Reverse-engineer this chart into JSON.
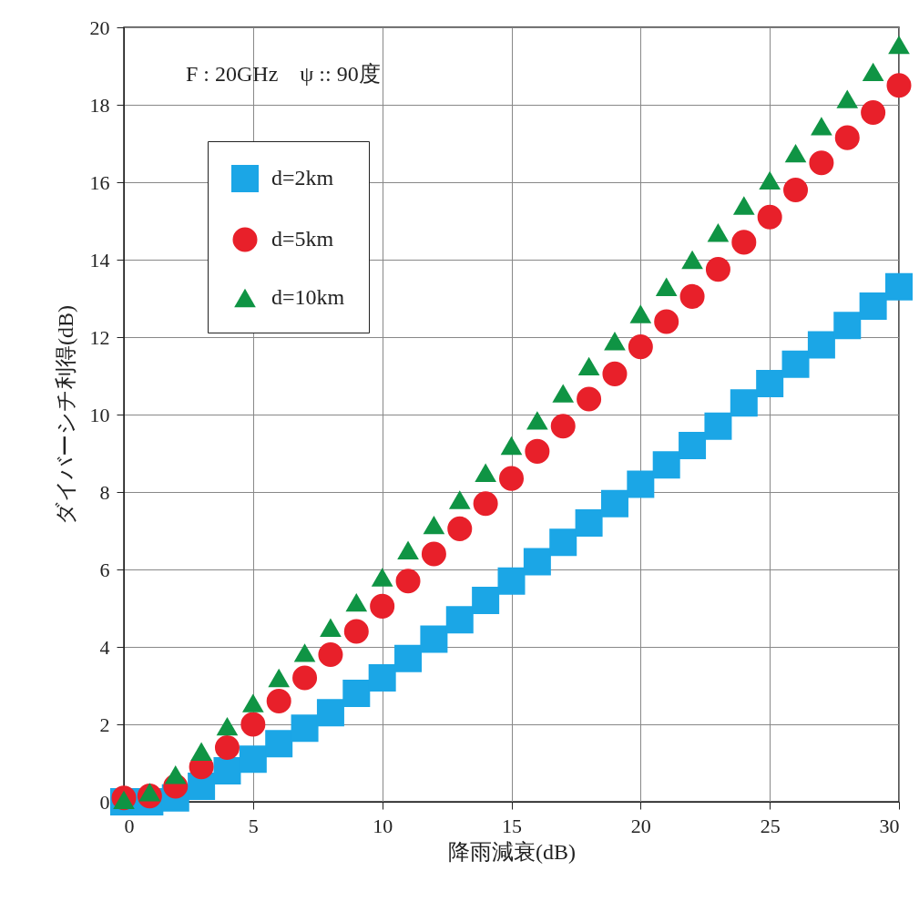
{
  "chart_data": {
    "type": "scatter",
    "xlabel": "降雨減衰(dB)",
    "ylabel": "ダイバーシチ利得(dB)",
    "annotations": [
      "F : 20GHz　ψ :: 90度"
    ],
    "x": [
      0,
      1,
      2,
      3,
      4,
      5,
      6,
      7,
      8,
      9,
      10,
      11,
      12,
      13,
      14,
      15,
      16,
      17,
      18,
      19,
      20,
      21,
      22,
      23,
      24,
      25,
      26,
      27,
      28,
      29,
      30
    ],
    "series": [
      {
        "name": "d=2km",
        "color": "#1ba6e6",
        "marker": "square",
        "values": [
          0,
          0,
          0.1,
          0.4,
          0.8,
          1.1,
          1.5,
          1.9,
          2.3,
          2.8,
          3.2,
          3.7,
          4.2,
          4.7,
          5.2,
          5.7,
          6.2,
          6.7,
          7.2,
          7.7,
          8.2,
          8.7,
          9.2,
          9.7,
          10.3,
          10.8,
          11.3,
          11.8,
          12.3,
          12.8,
          13.3
        ]
      },
      {
        "name": "d=5km",
        "color": "#e8202a",
        "marker": "circle",
        "values": [
          0.1,
          0.15,
          0.4,
          0.9,
          1.4,
          2.0,
          2.6,
          3.2,
          3.8,
          4.4,
          5.05,
          5.7,
          6.4,
          7.05,
          7.7,
          8.35,
          9.05,
          9.7,
          10.4,
          11.05,
          11.75,
          12.4,
          13.05,
          13.75,
          14.45,
          15.1,
          15.8,
          16.5,
          17.15,
          17.8,
          18.5
        ]
      },
      {
        "name": "d=10km",
        "color": "#0f9444",
        "marker": "triangle",
        "values": [
          0.05,
          0.25,
          0.7,
          1.3,
          1.95,
          2.55,
          3.2,
          3.85,
          4.5,
          5.15,
          5.8,
          6.5,
          7.15,
          7.8,
          8.5,
          9.2,
          9.85,
          10.55,
          11.25,
          11.9,
          12.6,
          13.3,
          14.0,
          14.7,
          15.4,
          16.05,
          16.75,
          17.45,
          18.15,
          18.85,
          19.55
        ]
      }
    ],
    "xlim": [
      0,
      30
    ],
    "xticks": [
      0,
      5,
      10,
      15,
      20,
      25,
      30
    ],
    "ylim": [
      0,
      20
    ],
    "yticks": [
      0,
      2,
      4,
      6,
      8,
      10,
      12,
      14,
      16,
      18,
      20
    ],
    "grid": true,
    "legend": "top left"
  }
}
